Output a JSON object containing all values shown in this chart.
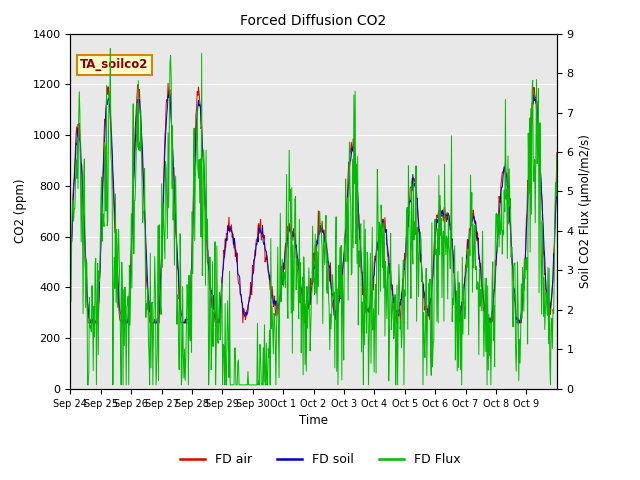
{
  "title": "Forced Diffusion CO2",
  "xlabel": "Time",
  "ylabel_left": "CO2 (ppm)",
  "ylabel_right": "Soil CO2 Flux (μmol/m2/s)",
  "annotation": "TA_soilco2",
  "ylim_left": [
    0,
    1400
  ],
  "ylim_right": [
    0.0,
    9.0
  ],
  "yticks_left": [
    0,
    200,
    400,
    600,
    800,
    1000,
    1200,
    1400
  ],
  "yticks_right": [
    0.0,
    1.0,
    2.0,
    3.0,
    4.0,
    5.0,
    6.0,
    7.0,
    8.0,
    9.0
  ],
  "xtick_labels": [
    "Sep 24",
    "Sep 25",
    "Sep 26",
    "Sep 27",
    "Sep 28",
    "Sep 29",
    "Sep 30",
    "Oct 1",
    "Oct 2",
    "Oct 3",
    "Oct 4",
    "Oct 5",
    "Oct 6",
    "Oct 7",
    "Oct 8",
    "Oct 9"
  ],
  "legend_labels": [
    "FD air",
    "FD soil",
    "FD Flux"
  ],
  "line_colors": [
    "#dd0000",
    "#0000cc",
    "#00bb00"
  ],
  "bg_color": "#e8e8e8",
  "plot_bg": "#e8e8e8",
  "annotation_bg": "#ffffcc",
  "annotation_border": "#cc8800",
  "figsize": [
    6.4,
    4.8
  ],
  "dpi": 100,
  "n_days": 16,
  "pts_per_day": 48,
  "base_co2": 450,
  "diurnal_amp": 150,
  "noise_sigma": 25
}
